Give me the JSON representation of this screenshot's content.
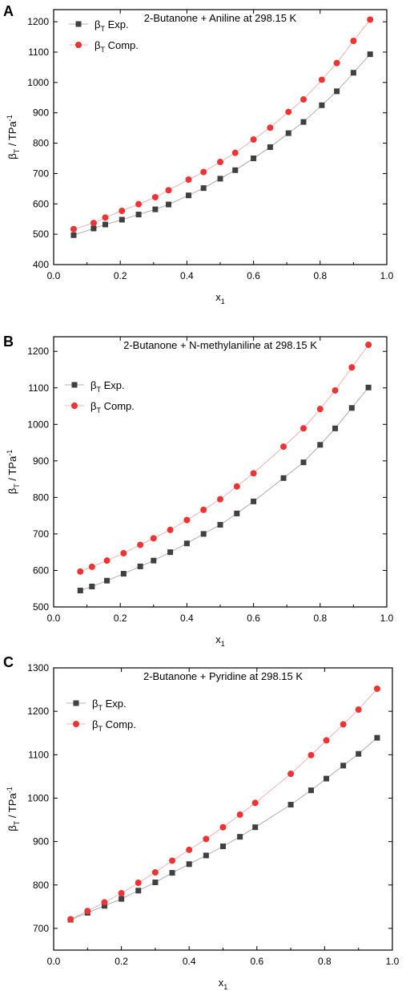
{
  "chart_data": [
    {
      "panel": "A",
      "type": "scatter",
      "title": "2-Butanone + Aniline at 298.15 K",
      "xlabel": "x1",
      "ylabel": "βT / TPa-1",
      "xlim": [
        0.0,
        1.0
      ],
      "ylim": [
        400,
        1240
      ],
      "xticks": [
        "0.0",
        "0.2",
        "0.4",
        "0.6",
        "0.8",
        "1.0"
      ],
      "yticks": [
        "400",
        "500",
        "600",
        "700",
        "800",
        "900",
        "1000",
        "1100",
        "1200"
      ],
      "legend_position": "top-left",
      "series": [
        {
          "name": "βT Exp.",
          "marker": "square",
          "color": "#404040",
          "x": [
            0.06,
            0.12,
            0.155,
            0.205,
            0.255,
            0.305,
            0.345,
            0.405,
            0.45,
            0.5,
            0.545,
            0.6,
            0.65,
            0.705,
            0.75,
            0.805,
            0.85,
            0.9,
            0.95
          ],
          "y": [
            497,
            519,
            532,
            548,
            565,
            582,
            598,
            628,
            652,
            683,
            711,
            750,
            787,
            833,
            870,
            925,
            971,
            1032,
            1093
          ]
        },
        {
          "name": "βT Comp.",
          "marker": "circle",
          "color": "#ee3333",
          "x": [
            0.06,
            0.12,
            0.155,
            0.205,
            0.255,
            0.305,
            0.345,
            0.405,
            0.45,
            0.5,
            0.545,
            0.6,
            0.65,
            0.705,
            0.75,
            0.805,
            0.85,
            0.9,
            0.95
          ],
          "y": [
            517,
            537,
            555,
            577,
            599,
            622,
            645,
            680,
            705,
            738,
            768,
            812,
            851,
            903,
            944,
            1009,
            1064,
            1137,
            1207
          ]
        }
      ]
    },
    {
      "panel": "B",
      "type": "scatter",
      "title": "2-Butanone + N-methylaniline at 298.15 K",
      "xlabel": "x1",
      "ylabel": "βT / TPa-1",
      "xlim": [
        0.0,
        1.0
      ],
      "ylim": [
        500,
        1240
      ],
      "xticks": [
        "0.0",
        "0.2",
        "0.4",
        "0.6",
        "0.8",
        "1.0"
      ],
      "yticks": [
        "500",
        "600",
        "700",
        "800",
        "900",
        "1000",
        "1100",
        "1200"
      ],
      "legend_position": "top-left",
      "series": [
        {
          "name": "βT Exp.",
          "marker": "square",
          "color": "#404040",
          "x": [
            0.08,
            0.115,
            0.16,
            0.21,
            0.26,
            0.3,
            0.35,
            0.4,
            0.45,
            0.5,
            0.55,
            0.6,
            0.69,
            0.75,
            0.8,
            0.845,
            0.895,
            0.945
          ],
          "y": [
            545,
            556,
            572,
            591,
            611,
            627,
            650,
            674,
            700,
            725,
            756,
            789,
            853,
            896,
            944,
            989,
            1045,
            1101
          ]
        },
        {
          "name": "βT Comp.",
          "marker": "circle",
          "color": "#ee3333",
          "x": [
            0.08,
            0.115,
            0.16,
            0.21,
            0.26,
            0.3,
            0.35,
            0.4,
            0.45,
            0.5,
            0.55,
            0.6,
            0.69,
            0.75,
            0.8,
            0.845,
            0.895,
            0.945
          ],
          "y": [
            597,
            610,
            627,
            647,
            670,
            688,
            711,
            738,
            766,
            795,
            830,
            866,
            939,
            989,
            1042,
            1093,
            1156,
            1218
          ]
        }
      ]
    },
    {
      "panel": "C",
      "type": "scatter",
      "title": "2-Butanone + Pyridine at 298.15 K",
      "xlabel": "x1",
      "ylabel": "βT / TPa-1",
      "xlim": [
        0.0,
        1.0
      ],
      "ylim": [
        650,
        1300
      ],
      "xticks": [
        "0.0",
        "0.2",
        "0.4",
        "0.6",
        "0.8",
        "1.0"
      ],
      "yticks": [
        "700",
        "800",
        "900",
        "1000",
        "1100",
        "1200",
        "1300"
      ],
      "legend_position": "top-left",
      "series": [
        {
          "name": "βT Exp.",
          "marker": "square",
          "color": "#404040",
          "x": [
            0.05,
            0.1,
            0.15,
            0.2,
            0.25,
            0.3,
            0.35,
            0.4,
            0.45,
            0.5,
            0.55,
            0.595,
            0.7,
            0.76,
            0.805,
            0.855,
            0.9,
            0.955
          ],
          "y": [
            720,
            736,
            752,
            768,
            787,
            806,
            828,
            848,
            868,
            889,
            911,
            933,
            985,
            1018,
            1045,
            1075,
            1102,
            1139
          ]
        },
        {
          "name": "βT Comp.",
          "marker": "circle",
          "color": "#ee3333",
          "x": [
            0.05,
            0.1,
            0.15,
            0.2,
            0.25,
            0.3,
            0.35,
            0.4,
            0.45,
            0.5,
            0.55,
            0.595,
            0.7,
            0.76,
            0.805,
            0.855,
            0.9,
            0.955
          ],
          "y": [
            721,
            740,
            760,
            781,
            805,
            829,
            856,
            881,
            906,
            933,
            962,
            989,
            1056,
            1099,
            1133,
            1170,
            1204,
            1252
          ]
        }
      ]
    }
  ]
}
